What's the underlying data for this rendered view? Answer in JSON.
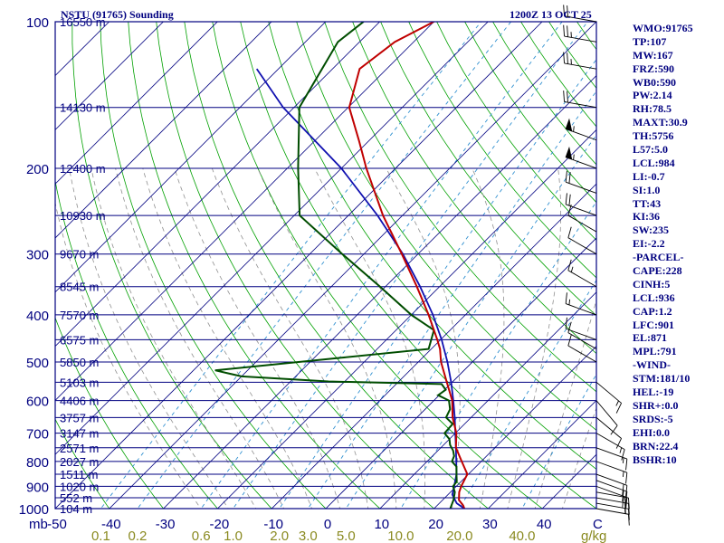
{
  "header": {
    "title": "NSTU (91765) Sounding",
    "time": "1200Z 13 OCT 25"
  },
  "indices": [
    "WMO:91765",
    "TP:107",
    "MW:167",
    "FRZ:590",
    "WB0:590",
    "PW:2.14",
    "RH:78.5",
    "MAXT:30.9",
    "TH:5756",
    "L57:5.0",
    "LCL:984",
    "LI:-0.7",
    "SI:1.0",
    "TT:43",
    "KI:36",
    "SW:235",
    "EI:-2.2",
    "-PARCEL-",
    "CAPE:228",
    "CINH:5",
    "LCL:936",
    "CAP:1.2",
    "LFC:901",
    "EL:871",
    "MPL:791",
    "-WIND-",
    "STM:181/10",
    "HEL:-19",
    "SHR+:0.0",
    "SRDS:-5",
    "EHI:0.0",
    "BRN:22.4",
    "BSHR:10"
  ],
  "colors": {
    "frame": "#000080",
    "isotherm": "#000080",
    "dry_adiabat": "#00a000",
    "moist_adiabat": "#909090",
    "mixing_ratio": "#3090d0",
    "temperature": "#c00000",
    "dewpoint": "#004d00",
    "parcel": "#1010b0",
    "mixing_label": "#8a8a20"
  },
  "chart_data": {
    "type": "skew-t",
    "title": "NSTU (91765) Sounding",
    "time": "1200Z 13 OCT 25",
    "xlabel": "C",
    "xlabel_mixing": "g/kg",
    "ylabel": "mb",
    "pressure_range_mb": [
      1000,
      100
    ],
    "temperature_range_c": [
      -50,
      50
    ],
    "pressure_ticks": [
      100,
      200,
      300,
      400,
      500,
      600,
      700,
      800,
      900,
      1000
    ],
    "temperature_ticks": [
      -50,
      -40,
      -30,
      -20,
      -10,
      0,
      10,
      20,
      30,
      40
    ],
    "mixing_ratio_labels": [
      "0.1",
      "0.2",
      "0.6",
      "1.0",
      "2.0",
      "3.0",
      "5.0",
      "10.0",
      "20.0",
      "40.0"
    ],
    "mixing_ratio_values": [
      0.1,
      0.2,
      0.6,
      1.0,
      2.0,
      3.0,
      5.0,
      10.0,
      20.0,
      40.0
    ],
    "height_labels": [
      {
        "pressure": 100,
        "label": "16550 m"
      },
      {
        "pressure": 150,
        "label": "14130 m"
      },
      {
        "pressure": 200,
        "label": "12400 m"
      },
      {
        "pressure": 250,
        "label": "10930 m"
      },
      {
        "pressure": 300,
        "label": "9670 m"
      },
      {
        "pressure": 350,
        "label": "8545 m"
      },
      {
        "pressure": 400,
        "label": "7570 m"
      },
      {
        "pressure": 450,
        "label": "6575 m"
      },
      {
        "pressure": 500,
        "label": "5850 m"
      },
      {
        "pressure": 550,
        "label": "5103 m"
      },
      {
        "pressure": 600,
        "label": "4406 m"
      },
      {
        "pressure": 650,
        "label": "3757 m"
      },
      {
        "pressure": 700,
        "label": "3147 m"
      },
      {
        "pressure": 750,
        "label": "2571 m"
      },
      {
        "pressure": 800,
        "label": "2027 m"
      },
      {
        "pressure": 850,
        "label": "1511 m"
      },
      {
        "pressure": 900,
        "label": "1020 m"
      },
      {
        "pressure": 950,
        "label": "552 m"
      },
      {
        "pressure": 1000,
        "label": "104 m"
      }
    ],
    "temperature_profile": [
      {
        "p": 1000,
        "t": 25.6
      },
      {
        "p": 985,
        "t": 24.8
      },
      {
        "p": 960,
        "t": 23.0
      },
      {
        "p": 925,
        "t": 21.6
      },
      {
        "p": 900,
        "t": 20.9
      },
      {
        "p": 850,
        "t": 19.8
      },
      {
        "p": 800,
        "t": 16.4
      },
      {
        "p": 750,
        "t": 12.8
      },
      {
        "p": 700,
        "t": 10.2
      },
      {
        "p": 650,
        "t": 6.6
      },
      {
        "p": 600,
        "t": 3.4
      },
      {
        "p": 550,
        "t": -1.0
      },
      {
        "p": 500,
        "t": -5.8
      },
      {
        "p": 470,
        "t": -8.4
      },
      {
        "p": 450,
        "t": -10.6
      },
      {
        "p": 400,
        "t": -16.8
      },
      {
        "p": 350,
        "t": -24.2
      },
      {
        "p": 300,
        "t": -33.0
      },
      {
        "p": 250,
        "t": -43.6
      },
      {
        "p": 200,
        "t": -55.4
      },
      {
        "p": 175,
        "t": -62.0
      },
      {
        "p": 150,
        "t": -69.8
      },
      {
        "p": 125,
        "t": -75.0
      },
      {
        "p": 110,
        "t": -73.5
      },
      {
        "p": 100,
        "t": -70.0
      }
    ],
    "dewpoint_profile": [
      {
        "p": 1000,
        "t": 23.0
      },
      {
        "p": 960,
        "t": 22.0
      },
      {
        "p": 925,
        "t": 20.8
      },
      {
        "p": 900,
        "t": 19.4
      },
      {
        "p": 880,
        "t": 19.2
      },
      {
        "p": 850,
        "t": 17.8
      },
      {
        "p": 820,
        "t": 16.4
      },
      {
        "p": 800,
        "t": 14.6
      },
      {
        "p": 780,
        "t": 14.0
      },
      {
        "p": 760,
        "t": 12.8
      },
      {
        "p": 740,
        "t": 11.2
      },
      {
        "p": 720,
        "t": 10.0
      },
      {
        "p": 700,
        "t": 8.0
      },
      {
        "p": 670,
        "t": 7.8
      },
      {
        "p": 650,
        "t": 5.4
      },
      {
        "p": 625,
        "t": 4.6
      },
      {
        "p": 600,
        "t": 2.8
      },
      {
        "p": 585,
        "t": -0.2
      },
      {
        "p": 570,
        "t": 0.2
      },
      {
        "p": 555,
        "t": -1.6
      },
      {
        "p": 548,
        "t": -23.0
      },
      {
        "p": 535,
        "t": -40.0
      },
      {
        "p": 520,
        "t": -46.0
      },
      {
        "p": 490,
        "t": -25.0
      },
      {
        "p": 470,
        "t": -10.5
      },
      {
        "p": 430,
        "t": -13.0
      },
      {
        "p": 400,
        "t": -20.0
      },
      {
        "p": 350,
        "t": -31.0
      },
      {
        "p": 300,
        "t": -44.0
      },
      {
        "p": 250,
        "t": -59.0
      },
      {
        "p": 200,
        "t": -68.0
      },
      {
        "p": 150,
        "t": -79.0
      },
      {
        "p": 110,
        "t": -84.0
      },
      {
        "p": 100,
        "t": -83.0
      }
    ],
    "parcel_profile": [
      {
        "p": 1000,
        "t": 25.6
      },
      {
        "p": 975,
        "t": 23.2
      },
      {
        "p": 936,
        "t": 20.8
      },
      {
        "p": 900,
        "t": 19.6
      },
      {
        "p": 850,
        "t": 17.8
      },
      {
        "p": 800,
        "t": 15.4
      },
      {
        "p": 750,
        "t": 12.8
      },
      {
        "p": 700,
        "t": 10.0
      },
      {
        "p": 650,
        "t": 7.0
      },
      {
        "p": 600,
        "t": 3.6
      },
      {
        "p": 550,
        "t": -0.2
      },
      {
        "p": 500,
        "t": -4.6
      },
      {
        "p": 450,
        "t": -9.8
      },
      {
        "p": 400,
        "t": -16.0
      },
      {
        "p": 350,
        "t": -23.6
      },
      {
        "p": 300,
        "t": -32.8
      },
      {
        "p": 250,
        "t": -44.6
      },
      {
        "p": 200,
        "t": -60.0
      },
      {
        "p": 150,
        "t": -82.0
      },
      {
        "p": 125,
        "t": -94.0
      }
    ],
    "wind_barbs": [
      {
        "p": 1000,
        "dir": 100,
        "kt": 10
      },
      {
        "p": 975,
        "dir": 100,
        "kt": 15
      },
      {
        "p": 950,
        "dir": 100,
        "kt": 20
      },
      {
        "p": 925,
        "dir": 100,
        "kt": 20
      },
      {
        "p": 900,
        "dir": 110,
        "kt": 20
      },
      {
        "p": 875,
        "dir": 110,
        "kt": 20
      },
      {
        "p": 850,
        "dir": 110,
        "kt": 20
      },
      {
        "p": 800,
        "dir": 110,
        "kt": 15
      },
      {
        "p": 750,
        "dir": 110,
        "kt": 15
      },
      {
        "p": 700,
        "dir": 120,
        "kt": 15
      },
      {
        "p": 650,
        "dir": 130,
        "kt": 10
      },
      {
        "p": 600,
        "dir": 140,
        "kt": 10
      },
      {
        "p": 550,
        "dir": 130,
        "kt": 15
      },
      {
        "p": 500,
        "dir": 300,
        "kt": 10
      },
      {
        "p": 470,
        "dir": 300,
        "kt": 10
      },
      {
        "p": 450,
        "dir": 290,
        "kt": 10
      },
      {
        "p": 400,
        "dir": 290,
        "kt": 15
      },
      {
        "p": 350,
        "dir": 300,
        "kt": 15
      },
      {
        "p": 300,
        "dir": 300,
        "kt": 10
      },
      {
        "p": 270,
        "dir": 300,
        "kt": 10
      },
      {
        "p": 250,
        "dir": 290,
        "kt": 20
      },
      {
        "p": 225,
        "dir": 290,
        "kt": 20
      },
      {
        "p": 200,
        "dir": 290,
        "kt": 55
      },
      {
        "p": 175,
        "dir": 290,
        "kt": 55
      },
      {
        "p": 150,
        "dir": 280,
        "kt": 20
      },
      {
        "p": 125,
        "dir": 280,
        "kt": 25
      },
      {
        "p": 110,
        "dir": 280,
        "kt": 25
      },
      {
        "p": 100,
        "dir": 280,
        "kt": 20
      }
    ]
  }
}
